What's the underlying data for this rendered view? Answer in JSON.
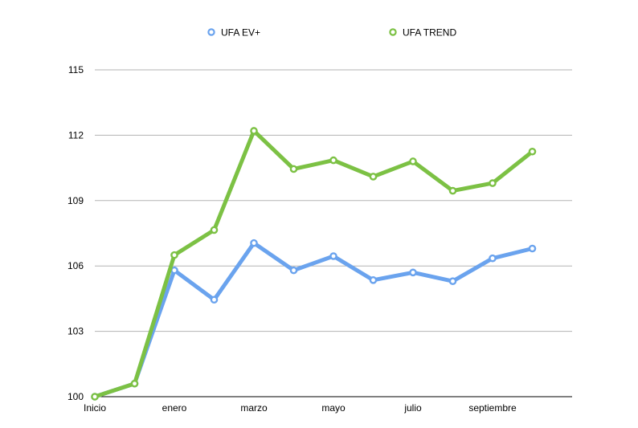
{
  "chart_data": {
    "type": "line",
    "title": "",
    "xlabel": "",
    "ylabel": "",
    "categories": [
      "Inicio",
      "",
      "enero",
      "",
      "marzo",
      "",
      "mayo",
      "",
      "julio",
      "",
      "septiembre",
      ""
    ],
    "ylim": [
      100,
      115
    ],
    "yticks": [
      "100",
      "103",
      "106",
      "109",
      "112",
      "115"
    ],
    "grid": true,
    "legend_position": "top",
    "series": [
      {
        "name": "UFA EV+",
        "color": "#6aa3ee",
        "values": [
          100.0,
          100.6,
          105.8,
          104.45,
          107.05,
          105.8,
          106.45,
          105.35,
          105.7,
          105.3,
          106.35,
          106.8
        ]
      },
      {
        "name": "UFA TREND",
        "color": "#7cc144",
        "values": [
          100.0,
          100.6,
          106.5,
          107.65,
          112.2,
          110.45,
          110.85,
          110.1,
          110.8,
          109.45,
          109.8,
          111.25
        ]
      }
    ]
  }
}
